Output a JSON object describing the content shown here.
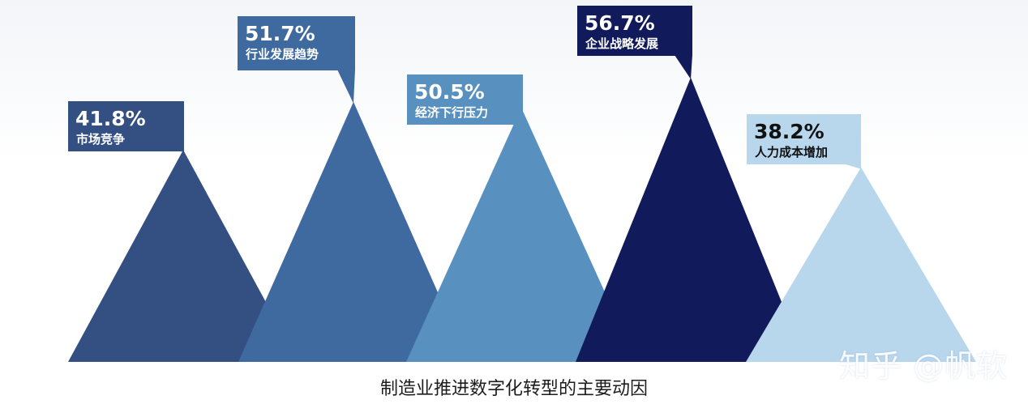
{
  "chart_data": {
    "type": "bar",
    "categories": [
      "市场竞争",
      "行业发展趋势",
      "经济下行压力",
      "企业战略发展",
      "人力成本增加"
    ],
    "values": [
      41.8,
      51.7,
      50.5,
      56.7,
      38.2
    ],
    "value_labels": [
      "41.8%",
      "51.7%",
      "50.5%",
      "56.7%",
      "38.2%"
    ],
    "title": "",
    "xlabel": "",
    "ylabel": "",
    "ylim": [
      0,
      60
    ],
    "grid": false,
    "legend": "none",
    "colors": [
      "#344f82",
      "#3f6aa0",
      "#5891bf",
      "#111b5c",
      "#b8d6ec"
    ],
    "label_text_colors": [
      "#ffffff",
      "#ffffff",
      "#ffffff",
      "#ffffff",
      "#111111"
    ]
  },
  "caption": "制造业推进数字化转型的主要动因",
  "watermark": "知乎 @帆软"
}
